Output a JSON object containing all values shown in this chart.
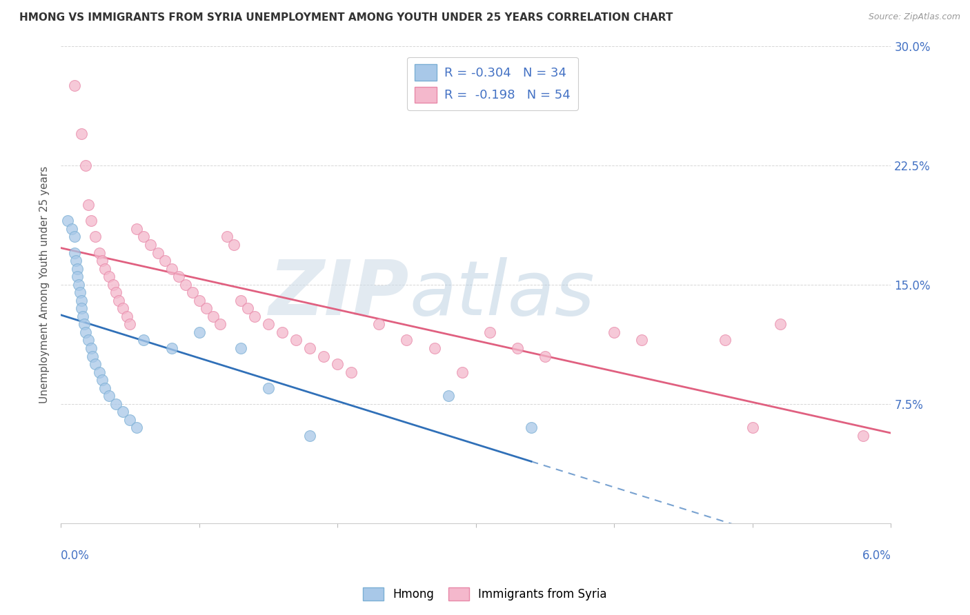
{
  "title": "HMONG VS IMMIGRANTS FROM SYRIA UNEMPLOYMENT AMONG YOUTH UNDER 25 YEARS CORRELATION CHART",
  "source": "Source: ZipAtlas.com",
  "ylabel": "Unemployment Among Youth under 25 years",
  "xlim": [
    0.0,
    6.0
  ],
  "ylim": [
    0.0,
    30.0
  ],
  "yticks": [
    0.0,
    7.5,
    15.0,
    22.5,
    30.0
  ],
  "ytick_labels_right": [
    "",
    "7.5%",
    "15.0%",
    "22.5%",
    "30.0%"
  ],
  "legend1_R": "-0.304",
  "legend1_N": "34",
  "legend2_R": "-0.198",
  "legend2_N": "54",
  "blue_scatter_color": "#a8c8e8",
  "blue_edge_color": "#7bafd4",
  "pink_scatter_color": "#f4b8cc",
  "pink_edge_color": "#e888a8",
  "blue_line_color": "#3070b8",
  "pink_line_color": "#e06080",
  "hmong_x": [
    0.05,
    0.08,
    0.1,
    0.1,
    0.11,
    0.12,
    0.12,
    0.13,
    0.14,
    0.15,
    0.15,
    0.16,
    0.17,
    0.18,
    0.2,
    0.22,
    0.23,
    0.25,
    0.28,
    0.3,
    0.32,
    0.35,
    0.4,
    0.45,
    0.5,
    0.55,
    0.6,
    0.8,
    1.0,
    1.3,
    1.5,
    1.8,
    2.8,
    3.4
  ],
  "hmong_y": [
    19.0,
    18.5,
    18.0,
    17.0,
    16.5,
    16.0,
    15.5,
    15.0,
    14.5,
    14.0,
    13.5,
    13.0,
    12.5,
    12.0,
    11.5,
    11.0,
    10.5,
    10.0,
    9.5,
    9.0,
    8.5,
    8.0,
    7.5,
    7.0,
    6.5,
    6.0,
    11.5,
    11.0,
    12.0,
    11.0,
    8.5,
    5.5,
    8.0,
    6.0
  ],
  "syria_x": [
    0.1,
    0.15,
    0.18,
    0.2,
    0.22,
    0.25,
    0.28,
    0.3,
    0.32,
    0.35,
    0.38,
    0.4,
    0.42,
    0.45,
    0.48,
    0.5,
    0.55,
    0.6,
    0.65,
    0.7,
    0.75,
    0.8,
    0.85,
    0.9,
    0.95,
    1.0,
    1.05,
    1.1,
    1.15,
    1.2,
    1.25,
    1.3,
    1.35,
    1.4,
    1.5,
    1.6,
    1.7,
    1.8,
    1.9,
    2.0,
    2.1,
    2.3,
    2.5,
    2.7,
    2.9,
    3.1,
    3.3,
    3.5,
    4.0,
    4.2,
    4.8,
    5.0,
    5.2,
    5.8
  ],
  "syria_y": [
    27.5,
    24.5,
    22.5,
    20.0,
    19.0,
    18.0,
    17.0,
    16.5,
    16.0,
    15.5,
    15.0,
    14.5,
    14.0,
    13.5,
    13.0,
    12.5,
    18.5,
    18.0,
    17.5,
    17.0,
    16.5,
    16.0,
    15.5,
    15.0,
    14.5,
    14.0,
    13.5,
    13.0,
    12.5,
    18.0,
    17.5,
    14.0,
    13.5,
    13.0,
    12.5,
    12.0,
    11.5,
    11.0,
    10.5,
    10.0,
    9.5,
    12.5,
    11.5,
    11.0,
    9.5,
    12.0,
    11.0,
    10.5,
    12.0,
    11.5,
    11.5,
    6.0,
    12.5,
    5.5
  ]
}
